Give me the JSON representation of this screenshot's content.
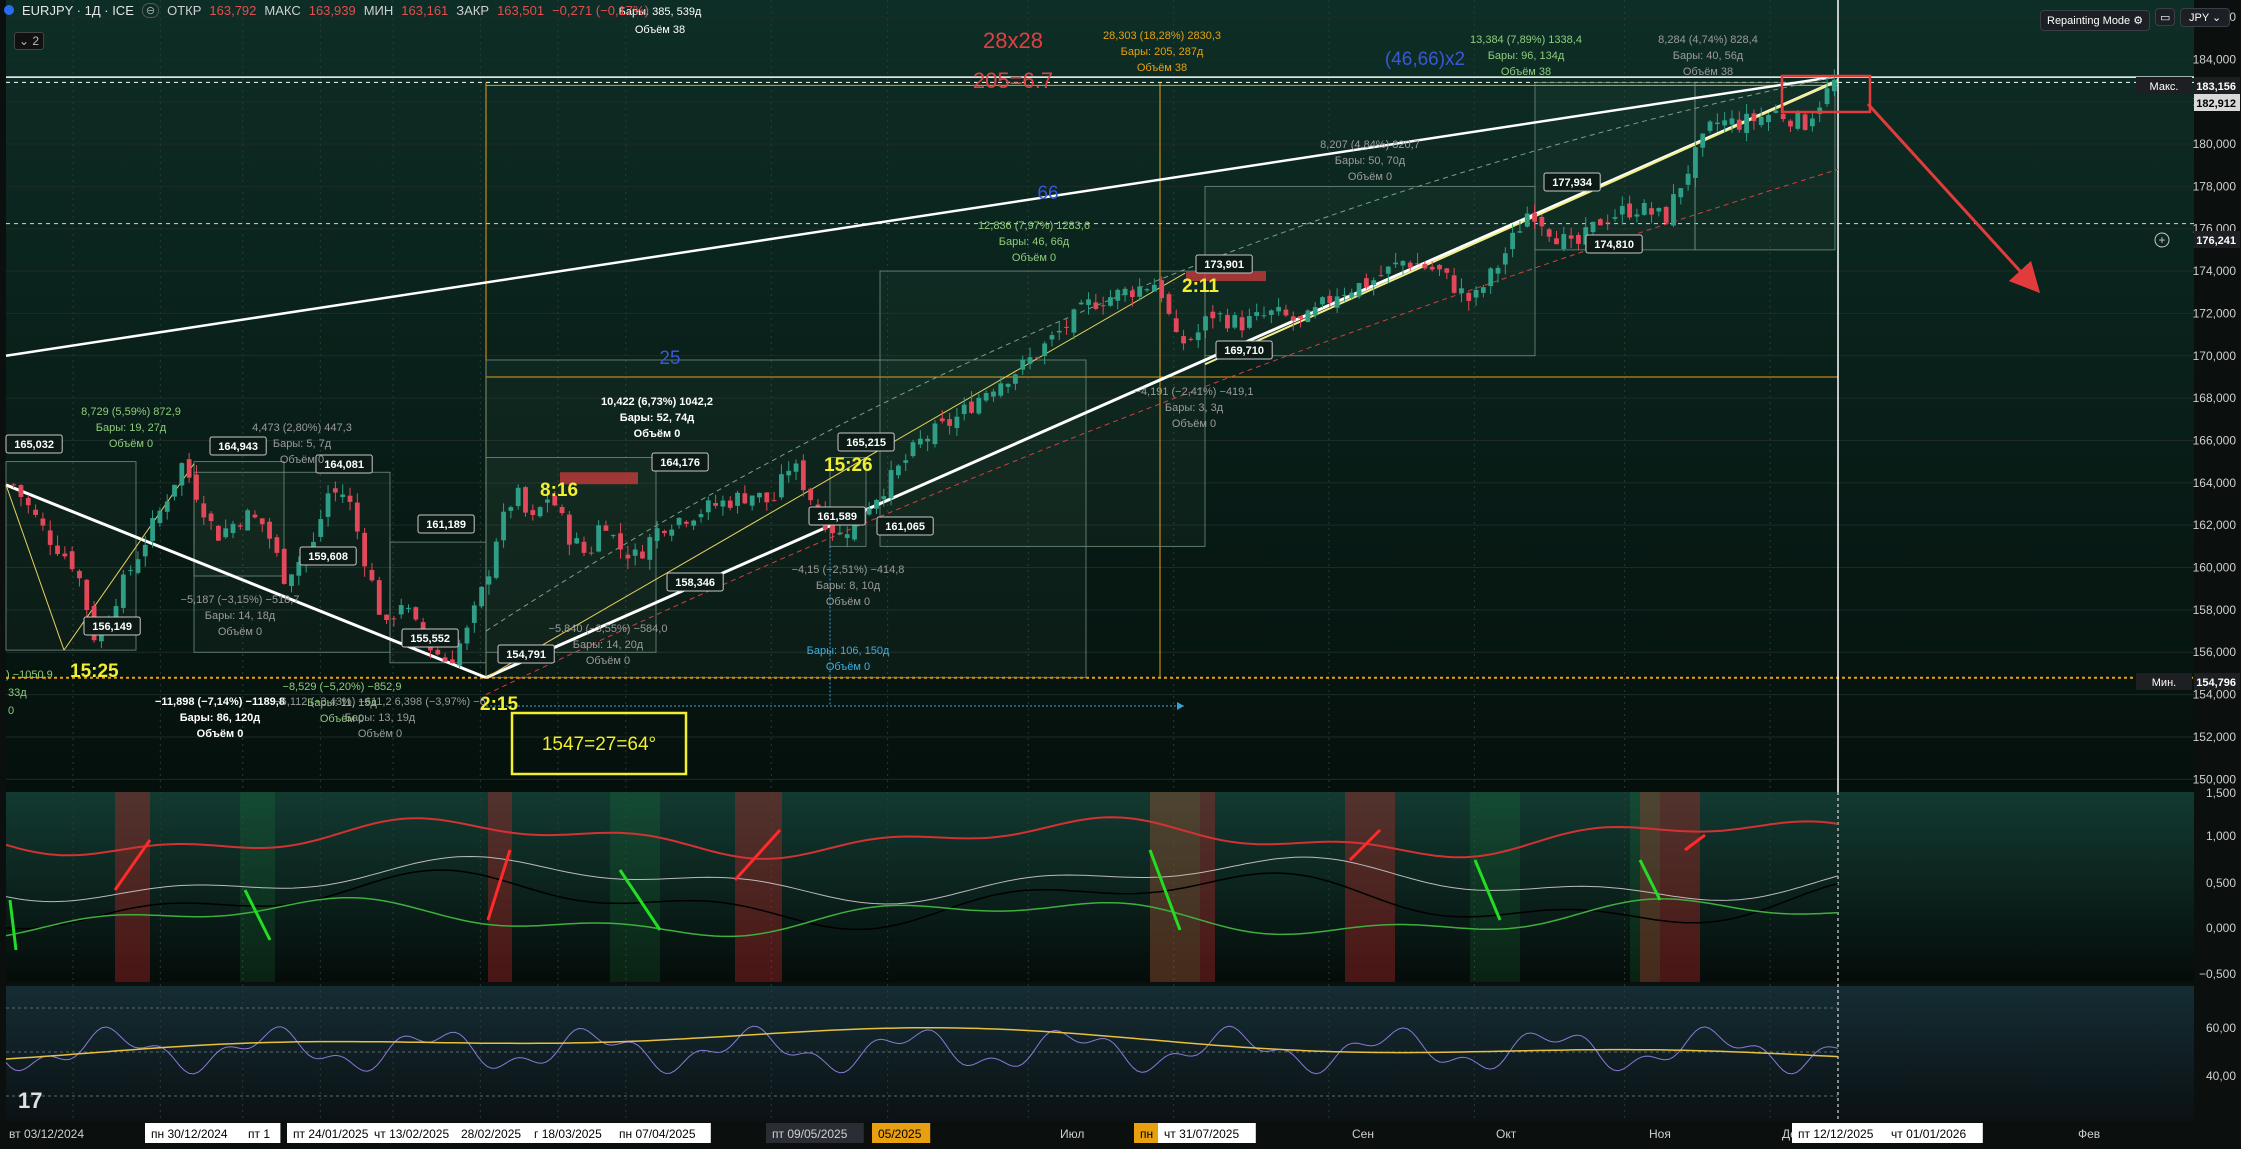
{
  "header": {
    "symbol": "EURJPY · 1Д · ICE",
    "open_label": "ОТКР",
    "open": "163,792",
    "high_label": "МАКС",
    "high": "163,939",
    "low_label": "МИН",
    "low": "163,161",
    "close_label": "ЗАКР",
    "close": "163,501",
    "change": "−0,271 (−0,17%)",
    "layers_count": "2"
  },
  "toolbar": {
    "mode_label": "Repainting Mode",
    "currency": "JPY"
  },
  "chart_data": {
    "type": "line",
    "price_axis_ticks": [
      "186,000",
      "184,000",
      "182,000",
      "180,000",
      "178,000",
      "176,000",
      "174,000",
      "172,000",
      "170,000",
      "168,000",
      "166,000",
      "164,000",
      "162,000",
      "160,000",
      "158,000",
      "156,000",
      "154,000",
      "152,000",
      "150,000"
    ],
    "ylim": [
      149.4,
      186.8
    ],
    "time_labels": [
      "вт 03/12/2024",
      "пн 30/12/2024",
      "пт 1",
      "пт 24/01/2025",
      "чт 13/02/2025",
      "28/02/2025",
      "г 18/03/2025",
      "пн 07/04/2025",
      "пт 09/05/2025",
      "05/2025",
      "Июл",
      "пн",
      "чт 31/07/2025",
      "Сен",
      "Окт",
      "Ноя",
      "Дек",
      "пт 12/12/2025",
      "чт 01/01/2026",
      "Фев"
    ],
    "price_badges": [
      {
        "label": "Макс.",
        "value": "183,156"
      },
      {
        "value": "182,912"
      },
      {
        "value": "176,241"
      },
      {
        "label": "Мин.",
        "value": "154,796"
      }
    ],
    "price_labels": [
      "165,032",
      "164,943",
      "164,081",
      "161,189",
      "159,608",
      "156,149",
      "155,552",
      "154,791",
      "158,346",
      "164,176",
      "165,215",
      "161,589",
      "161,065",
      "173,901",
      "169,710",
      "177,934",
      "174,810"
    ],
    "close_path": [
      [
        "2024-12-03",
        163.9
      ],
      [
        "2024-12-10",
        161.5
      ],
      [
        "2024-12-16",
        160.0
      ],
      [
        "2024-12-20",
        156.5
      ],
      [
        "2024-12-24",
        158.5
      ],
      [
        "2025-01-02",
        162.5
      ],
      [
        "2025-01-07",
        164.94
      ],
      [
        "2025-01-14",
        161.5
      ],
      [
        "2025-01-20",
        162.5
      ],
      [
        "2025-01-24",
        162.0
      ],
      [
        "2025-01-28",
        159.6
      ],
      [
        "2025-02-03",
        161.0
      ],
      [
        "2025-02-06",
        163.5
      ],
      [
        "2025-02-10",
        163.5
      ],
      [
        "2025-02-13",
        161.0
      ],
      [
        "2025-02-18",
        157.0
      ],
      [
        "2025-02-21",
        158.5
      ],
      [
        "2025-02-26",
        156.5
      ],
      [
        "2025-03-03",
        155.5
      ],
      [
        "2025-03-07",
        157.0
      ],
      [
        "2025-03-11",
        159.5
      ],
      [
        "2025-03-13",
        161.5
      ],
      [
        "2025-03-17",
        163.6
      ],
      [
        "2025-03-20",
        162.0
      ],
      [
        "2025-03-24",
        163.5
      ],
      [
        "2025-03-28",
        161.5
      ],
      [
        "2025-04-01",
        160.5
      ],
      [
        "2025-04-04",
        162.5
      ],
      [
        "2025-04-07",
        161.0
      ],
      [
        "2025-04-11",
        160.5
      ],
      [
        "2025-04-16",
        162.0
      ],
      [
        "2025-04-22",
        162.5
      ],
      [
        "2025-04-28",
        163.0
      ],
      [
        "2025-05-05",
        163.5
      ],
      [
        "2025-05-09",
        163.0
      ],
      [
        "2025-05-13",
        165.0
      ],
      [
        "2025-05-19",
        162.5
      ],
      [
        "2025-05-23",
        161.5
      ],
      [
        "2025-05-27",
        162.5
      ],
      [
        "2025-06-02",
        164.0
      ],
      [
        "2025-06-09",
        166.0
      ],
      [
        "2025-06-16",
        167.0
      ],
      [
        "2025-06-23",
        168.5
      ],
      [
        "2025-06-30",
        169.5
      ],
      [
        "2025-07-07",
        171.0
      ],
      [
        "2025-07-14",
        172.5
      ],
      [
        "2025-07-21",
        173.0
      ],
      [
        "2025-07-28",
        173.5
      ],
      [
        "2025-08-01",
        170.5
      ],
      [
        "2025-08-05",
        171.0
      ],
      [
        "2025-08-08",
        172.0
      ],
      [
        "2025-08-14",
        171.5
      ],
      [
        "2025-08-21",
        172.0
      ],
      [
        "2025-08-27",
        171.5
      ],
      [
        "2025-09-03",
        173.0
      ],
      [
        "2025-09-10",
        173.5
      ],
      [
        "2025-09-17",
        174.5
      ],
      [
        "2025-09-24",
        174.0
      ],
      [
        "2025-10-01",
        172.5
      ],
      [
        "2025-10-07",
        174.5
      ],
      [
        "2025-10-13",
        177.0
      ],
      [
        "2025-10-17",
        176.0
      ],
      [
        "2025-10-22",
        175.0
      ],
      [
        "2025-10-28",
        176.5
      ],
      [
        "2025-11-04",
        177.0
      ],
      [
        "2025-11-10",
        176.5
      ],
      [
        "2025-11-14",
        178.5
      ],
      [
        "2025-11-20",
        181.0
      ],
      [
        "2025-11-26",
        181.0
      ],
      [
        "2025-12-03",
        181.5
      ],
      [
        "2025-12-09",
        181.0
      ],
      [
        "2025-12-12",
        182.0
      ],
      [
        "2025-12-15",
        182.9
      ]
    ],
    "annotations": {
      "box1": {
        "stat": "8,729 (5,59%) 872,9",
        "bars": "Бары: 19, 27д",
        "vol": "Объём 0"
      },
      "box2": {
        "stat": "4,473 (2,80%) 447,3",
        "bars": "Бары: 5, 7д",
        "vol": "Объём 0"
      },
      "box3": {
        "stat": "−5,187 (−3,15%) −518,7",
        "bars": "Бары: 14, 18д",
        "vol": "Объём 0"
      },
      "box4": {
        "stat": "−11,898 (−7,14%) −1189,8",
        "bars": "Бары: 86, 120д",
        "vol": "Объём 0"
      },
      "box5": {
        "stat": "−8,529 (−5,20%) −852,9",
        "bars": "Бары: 11, 15д",
        "vol": "Объём 0"
      },
      "box6": {
        "stat": "−6,112 (−3,43%) −611,2  6,398 (−3,97%) −6",
        "bars": "Бары: 13, 19д",
        "vol": "Объём 0"
      },
      "box7": {
        "stat": "10,422 (6,73%) 1042,2",
        "bars": "Бары: 52, 74д",
        "vol": "Объём 0"
      },
      "box8": {
        "stat": "−5,840 (−3,55%) −584,0",
        "bars": "Бары: 14, 20д",
        "vol": "Объём 0"
      },
      "box9": {
        "stat": "−4,15 (−2,51%) −414,8",
        "bars": "Бары: 8, 10д",
        "vol": "Объём 0"
      },
      "box10": {
        "stat": "Бары: 106, 150д",
        "vol": "Объём 0"
      },
      "box11": {
        "stat": "12,836 (7,97%) 1283,6",
        "bars": "Бары: 46, 66д",
        "vol": "Объём 0"
      },
      "box12": {
        "stat": "−4,191 (−2,41%) −419,1",
        "bars": "Бары: 3, 3д",
        "vol": "Объём 0"
      },
      "box13": {
        "stat": "28,303 (18,28%) 2830,3",
        "bars": "Бары: 205, 287д",
        "vol": "Объём 38"
      },
      "box14": {
        "stat": "8,207 (4,84%) 820,7",
        "bars": "Бары: 50, 70д",
        "vol": "Объём 0"
      },
      "box15": {
        "stat": "13,384 (7,89%) 1338,4",
        "bars": "Бары: 96, 134д",
        "vol": "Объём 38"
      },
      "box16": {
        "stat": "8,284 (4,74%) 828,4",
        "bars": "Бары: 40, 56д",
        "vol": "Объём 38"
      },
      "top_left_bars": "Бары: 385, 539д",
      "top_left_vol": "Объём 38",
      "left_edge": ") −1050,9",
      "left_edge2": "33д",
      "left_edge3": "0"
    },
    "yellow_labels": [
      "15:25",
      "8:16",
      "15:26",
      "2:11",
      "2:15"
    ],
    "red_labels": [
      "28x28",
      "205=6.7"
    ],
    "blue_labels": [
      "66",
      "25",
      "(46,66)x2"
    ],
    "box_label": "1547=27=64°",
    "osc1_ticks": [
      "1,500",
      "1,000",
      "0,500",
      "0,000",
      "−0,500"
    ],
    "osc2_ticks": [
      "60,00",
      "40,00"
    ]
  }
}
